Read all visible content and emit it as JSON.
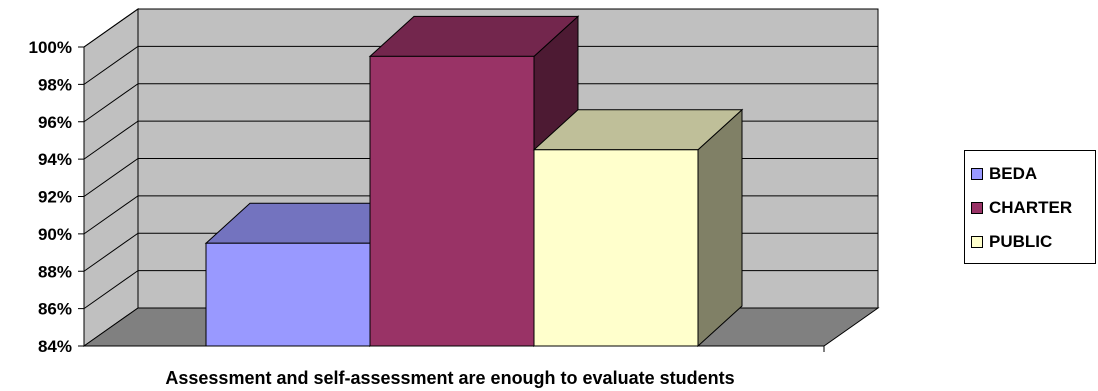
{
  "chart_data": {
    "type": "bar",
    "style": "3d-column",
    "categories": [
      "Assessment and self-assessment are enough to evaluate students"
    ],
    "series": [
      {
        "name": "BEDA",
        "value": 89.5,
        "color": "#9999FF"
      },
      {
        "name": "CHARTER",
        "value": 99.5,
        "color": "#993366"
      },
      {
        "name": "PUBLIC",
        "value": 94.5,
        "color": "#FFFFCC"
      }
    ],
    "yticks": [
      "84%",
      "86%",
      "88%",
      "90%",
      "92%",
      "94%",
      "96%",
      "98%",
      "100%"
    ],
    "ylim": [
      84,
      100
    ],
    "xlabel": "Assessment and self-assessment are enough to evaluate students",
    "ylabel": "",
    "title": "",
    "grid": true,
    "legend": "right",
    "wall_color": "#C0C0C0",
    "floor_color": "#808080"
  }
}
